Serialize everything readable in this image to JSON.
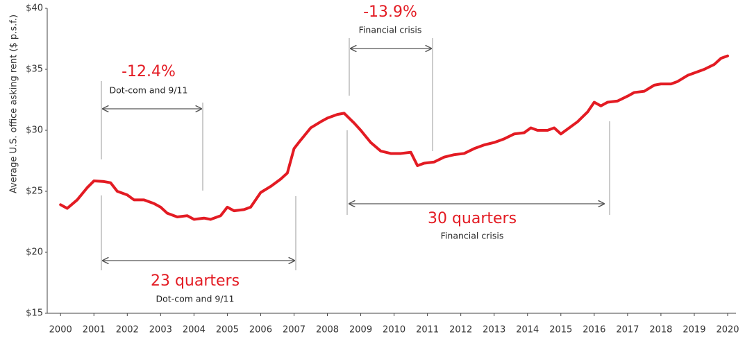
{
  "chart_data": {
    "type": "line",
    "y_label": "Average U.S. office asking rent ($ p.s.f.)",
    "annotations": [
      "-12.4%",
      "Dot-com and 9/11",
      "-13.9%",
      "Financial crisis",
      "23 quarters",
      "Dot-com and 9/11",
      "30 quarters",
      "Financial crisis"
    ],
    "xlim": [
      1999.6,
      2020.25
    ],
    "xticks": [
      2000,
      2001,
      2002,
      2003,
      2004,
      2005,
      2006,
      2007,
      2008,
      2009,
      2010,
      2011,
      2012,
      2013,
      2014,
      2015,
      2016,
      2017,
      2018,
      2019,
      2020
    ],
    "ylim": [
      15,
      40
    ],
    "yticks": [
      {
        "value": 15,
        "label": "$15"
      },
      {
        "value": 20,
        "label": "$20"
      },
      {
        "value": 25,
        "label": "$25"
      },
      {
        "value": 30,
        "label": "$30"
      },
      {
        "value": 35,
        "label": "$35"
      },
      {
        "value": 40,
        "label": "$40"
      }
    ],
    "series": [
      {
        "name": "Average U.S. office asking rent",
        "color": "#e31b23",
        "x": [
          2000.0,
          2000.2,
          2000.5,
          2000.8,
          2001.0,
          2001.3,
          2001.5,
          2001.7,
          2002.0,
          2002.2,
          2002.5,
          2002.8,
          2003.0,
          2003.2,
          2003.5,
          2003.8,
          2004.0,
          2004.3,
          2004.5,
          2004.8,
          2005.0,
          2005.2,
          2005.5,
          2005.7,
          2006.0,
          2006.3,
          2006.6,
          2006.8,
          2007.0,
          2007.2,
          2007.5,
          2007.8,
          2008.0,
          2008.3,
          2008.5,
          2008.8,
          2009.0,
          2009.3,
          2009.6,
          2009.9,
          2010.2,
          2010.5,
          2010.7,
          2010.9,
          2011.2,
          2011.5,
          2011.8,
          2012.1,
          2012.4,
          2012.7,
          2013.0,
          2013.3,
          2013.6,
          2013.9,
          2014.1,
          2014.3,
          2014.6,
          2014.8,
          2015.0,
          2015.2,
          2015.5,
          2015.8,
          2016.0,
          2016.2,
          2016.4,
          2016.7,
          2017.0,
          2017.2,
          2017.5,
          2017.8,
          2018.0,
          2018.3,
          2018.5,
          2018.8,
          2019.0,
          2019.3,
          2019.6,
          2019.8,
          2020.0
        ],
        "values": [
          23.9,
          23.6,
          24.3,
          25.3,
          25.85,
          25.8,
          25.7,
          25.0,
          24.7,
          24.3,
          24.3,
          24.0,
          23.7,
          23.2,
          22.9,
          23.0,
          22.7,
          22.8,
          22.7,
          23.0,
          23.7,
          23.4,
          23.5,
          23.7,
          24.9,
          25.4,
          26.0,
          26.5,
          28.5,
          29.2,
          30.2,
          30.7,
          31.0,
          31.3,
          31.4,
          30.6,
          30.0,
          29.0,
          28.3,
          28.1,
          28.1,
          28.2,
          27.1,
          27.3,
          27.4,
          27.8,
          28.0,
          28.1,
          28.5,
          28.8,
          29.0,
          29.3,
          29.7,
          29.8,
          30.2,
          30.0,
          30.0,
          30.2,
          29.7,
          30.1,
          30.7,
          31.5,
          32.3,
          32.0,
          32.3,
          32.4,
          32.8,
          33.1,
          33.2,
          33.7,
          33.8,
          33.8,
          34.0,
          34.5,
          34.7,
          35.0,
          35.4,
          35.9,
          36.1
        ]
      }
    ]
  }
}
